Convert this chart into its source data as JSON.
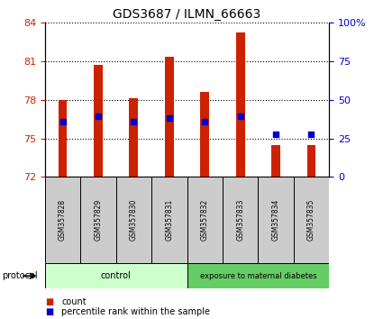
{
  "title": "GDS3687 / ILMN_66663",
  "samples": [
    "GSM357828",
    "GSM357829",
    "GSM357830",
    "GSM357831",
    "GSM357832",
    "GSM357833",
    "GSM357834",
    "GSM357835"
  ],
  "bar_bottoms": [
    72,
    72,
    72,
    72,
    72,
    72,
    72,
    72
  ],
  "bar_tops": [
    78.0,
    80.7,
    78.1,
    81.3,
    78.6,
    83.2,
    74.5,
    74.5
  ],
  "percentile_values": [
    76.3,
    76.7,
    76.3,
    76.6,
    76.3,
    76.7,
    75.3,
    75.3
  ],
  "ylim_left": [
    72,
    84
  ],
  "yticks_left": [
    72,
    75,
    78,
    81,
    84
  ],
  "ylim_right": [
    0,
    100
  ],
  "yticks_right": [
    0,
    25,
    50,
    75,
    100
  ],
  "bar_color": "#cc2200",
  "dot_color": "#0000cc",
  "control_group_count": 4,
  "treatment_group_count": 4,
  "control_label": "control",
  "treatment_label": "exposure to maternal diabetes",
  "protocol_label": "protocol",
  "legend_count": "count",
  "legend_percentile": "percentile rank within the sample",
  "control_bg": "#ccffcc",
  "treatment_bg": "#66cc66",
  "sample_bg": "#cccccc",
  "tick_color_left": "#cc2200",
  "tick_color_right": "#0000cc",
  "bar_width": 0.25,
  "dot_size": 22
}
